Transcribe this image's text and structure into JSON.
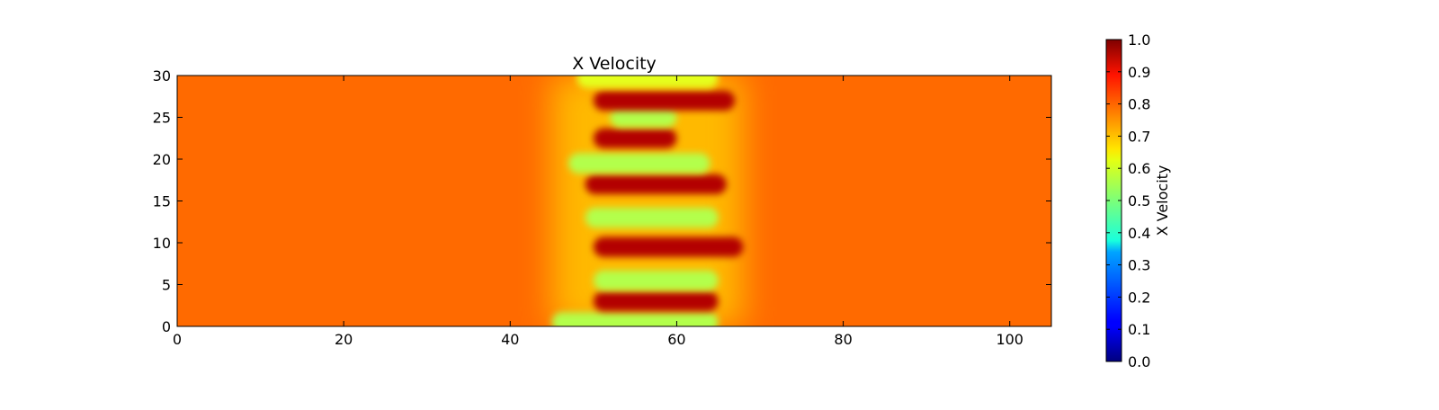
{
  "chart_data": {
    "type": "heatmap",
    "title": "X Velocity",
    "xlabel": "",
    "ylabel": "",
    "xlim": [
      0,
      105
    ],
    "ylim": [
      0,
      30
    ],
    "x_ticks": [
      "0",
      "20",
      "40",
      "60",
      "80",
      "100"
    ],
    "y_ticks": [
      "0",
      "5",
      "10",
      "15",
      "20",
      "25",
      "30"
    ],
    "colormap": "jet",
    "colorbar": {
      "label": "X Velocity",
      "range": [
        0.0,
        1.0
      ],
      "ticks": [
        "0.0",
        "0.1",
        "0.2",
        "0.3",
        "0.4",
        "0.5",
        "0.6",
        "0.7",
        "0.8",
        "0.9",
        "1.0"
      ]
    },
    "background_value": 0.8,
    "structure": {
      "x_range": [
        45,
        68
      ],
      "description_values": {
        "low": 0.55,
        "high": 0.95
      },
      "bands": [
        {
          "y": 0.5,
          "x_start": 45,
          "x_end": 65,
          "value": 0.55
        },
        {
          "y": 3.0,
          "x_start": 50,
          "x_end": 65,
          "value": 0.95
        },
        {
          "y": 5.5,
          "x_start": 50,
          "x_end": 65,
          "value": 0.55
        },
        {
          "y": 9.5,
          "x_start": 50,
          "x_end": 68,
          "value": 0.95
        },
        {
          "y": 13.0,
          "x_start": 49,
          "x_end": 65,
          "value": 0.55
        },
        {
          "y": 17.0,
          "x_start": 49,
          "x_end": 66,
          "value": 0.95
        },
        {
          "y": 19.5,
          "x_start": 47,
          "x_end": 64,
          "value": 0.55
        },
        {
          "y": 22.5,
          "x_start": 50,
          "x_end": 60,
          "value": 0.95
        },
        {
          "y": 25.0,
          "x_start": 52,
          "x_end": 60,
          "value": 0.55
        },
        {
          "y": 27.0,
          "x_start": 50,
          "x_end": 67,
          "value": 0.95
        },
        {
          "y": 29.7,
          "x_start": 48,
          "x_end": 65,
          "value": 0.6
        }
      ]
    }
  }
}
